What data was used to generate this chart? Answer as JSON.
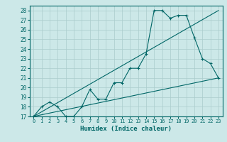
{
  "xlabel": "Humidex (Indice chaleur)",
  "ylabel": "",
  "xlim": [
    -0.5,
    23.5
  ],
  "ylim": [
    17,
    28.5
  ],
  "yticks": [
    17,
    18,
    19,
    20,
    21,
    22,
    23,
    24,
    25,
    26,
    27,
    28
  ],
  "xticks": [
    0,
    1,
    2,
    3,
    4,
    5,
    6,
    7,
    8,
    9,
    10,
    11,
    12,
    13,
    14,
    15,
    16,
    17,
    18,
    19,
    20,
    21,
    22,
    23
  ],
  "bg_color": "#cce8e8",
  "grid_color": "#aacccc",
  "line_color": "#006666",
  "line1": {
    "x": [
      0,
      1,
      2,
      3,
      4,
      5,
      6,
      7,
      8,
      9,
      10,
      11,
      12,
      13,
      14,
      15,
      16,
      17,
      18,
      19,
      20,
      21,
      22,
      23
    ],
    "y": [
      17,
      18,
      18.5,
      18,
      17,
      17,
      18,
      19.8,
      18.8,
      18.8,
      20.5,
      20.5,
      22,
      22,
      23.5,
      28,
      28,
      27.2,
      27.5,
      27.5,
      25.2,
      23,
      22.5,
      21
    ]
  },
  "line2": {
    "x": [
      0,
      23
    ],
    "y": [
      17,
      21
    ]
  },
  "line3": {
    "x": [
      0,
      23
    ],
    "y": [
      17,
      28
    ]
  }
}
